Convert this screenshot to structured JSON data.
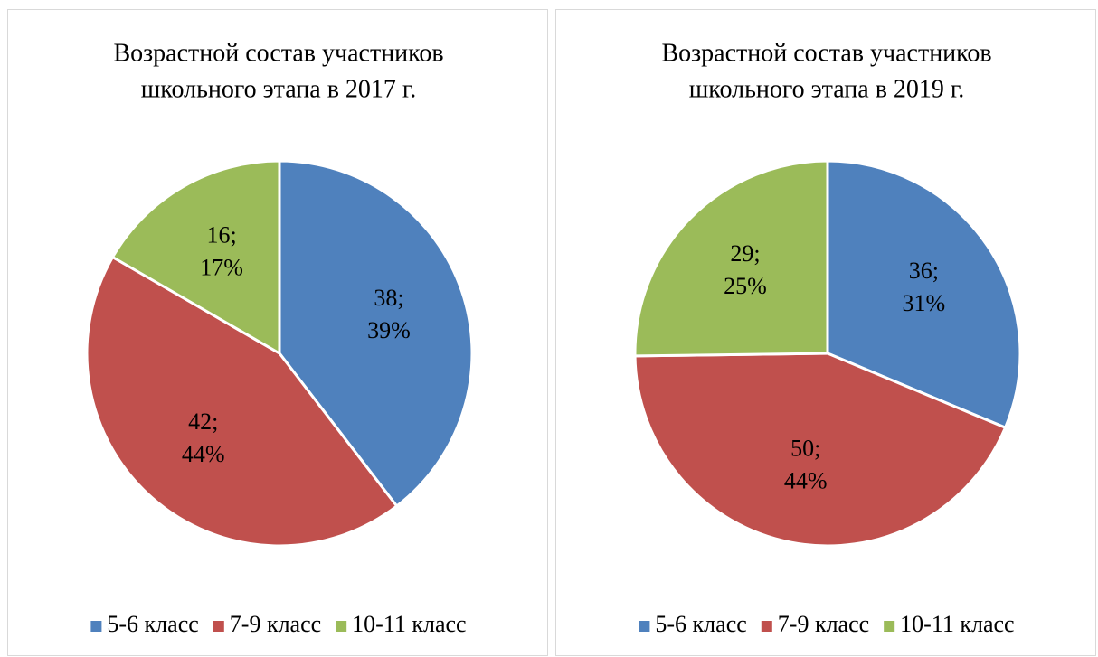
{
  "chart_data": [
    {
      "type": "pie",
      "title": [
        "Возрастной состав участников",
        "школьного этапа в 2017 г."
      ],
      "categories": [
        "5-6 класс",
        "7-9 класс",
        "10-11 класс"
      ],
      "values": [
        38,
        42,
        16
      ],
      "value_labels": [
        "38;",
        "42;",
        "16;"
      ],
      "percents": [
        39,
        44,
        17
      ],
      "percent_labels": [
        "39%",
        "44%",
        "17%"
      ],
      "colors": [
        "#4f81bd",
        "#c0504d",
        "#9bbb59"
      ],
      "legend": "bottom"
    },
    {
      "type": "pie",
      "title": [
        "Возрастной состав участников",
        "школьного этапа в 2019 г."
      ],
      "categories": [
        "5-6 класс",
        "7-9 класс",
        "10-11 класс"
      ],
      "values": [
        36,
        50,
        29
      ],
      "value_labels": [
        "36;",
        "50;",
        "29;"
      ],
      "percents": [
        31,
        44,
        25
      ],
      "percent_labels": [
        "31%",
        "44%",
        "25%"
      ],
      "colors": [
        "#4f81bd",
        "#c0504d",
        "#9bbb59"
      ],
      "legend": "bottom"
    }
  ]
}
